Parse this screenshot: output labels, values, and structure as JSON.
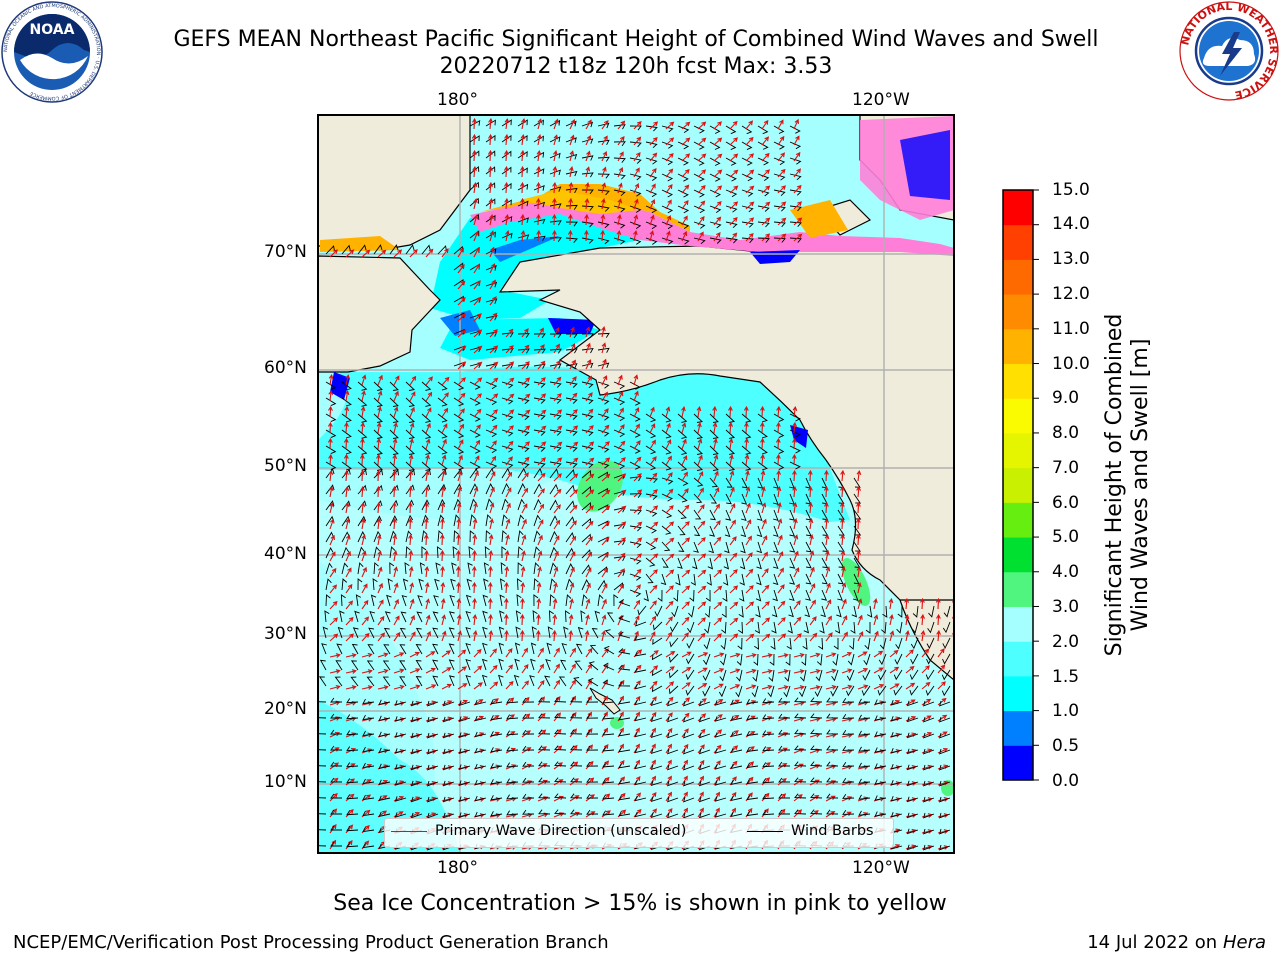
{
  "title": {
    "line1": "GEFS MEAN Northeast Pacific Significant Height of Combined Wind Waves and Swell",
    "line2": "20220712 t18z 120h fcst   Max: 3.53"
  },
  "logos": {
    "noaa": {
      "icon": "noaa-logo",
      "text": "NOAA",
      "ring_text": "NATIONAL OCEANIC AND ATMOSPHERIC ADMINISTRATION · U.S. DEPARTMENT OF COMMERCE"
    },
    "nws": {
      "icon": "nws-logo",
      "ring_text": "NATIONAL WEATHER SERVICE"
    }
  },
  "map": {
    "top_lon_labels": [
      "180°",
      "120°W"
    ],
    "bottom_lon_labels": [
      "180°",
      "120°W"
    ],
    "lat_labels": [
      "70°N",
      "60°N",
      "50°N",
      "40°N",
      "30°N",
      "20°N",
      "10°N"
    ],
    "colors": {
      "land": "#efecdc",
      "gridline": "#b0b0b0",
      "wave_arrow": "#dd1111",
      "wind_barb": "#000000"
    },
    "high_wave_areas": [
      "Gulf of Alaska patch ~3.0-3.5 m",
      "California coast ~3.0-3.5 m",
      "near Hawaii ~3.0 m"
    ]
  },
  "legend": {
    "wave_direction": "Primary Wave Direction (unscaled)",
    "wind_barbs": "Wind Barbs"
  },
  "colorbar": {
    "label_line1": "Significant Height of Combined",
    "label_line2": "Wind Waves and Swell [m]",
    "ticks": [
      "15.0",
      "14.0",
      "13.0",
      "12.0",
      "11.0",
      "10.0",
      "9.0",
      "8.0",
      "7.0",
      "6.0",
      "5.0",
      "4.0",
      "3.0",
      "2.0",
      "1.5",
      "1.0",
      "0.5",
      "0.0"
    ],
    "colors": [
      "#0000ff",
      "#0080ff",
      "#00ffff",
      "#4dffff",
      "#a6ffff",
      "#50f57f",
      "#00e030",
      "#66ee11",
      "#c8f000",
      "#e5f500",
      "#fafa00",
      "#ffe000",
      "#ffb300",
      "#ff8c00",
      "#ff6a00",
      "#ff4000",
      "#ff0000"
    ]
  },
  "note": "Sea Ice Concentration > 15% is shown in pink to yellow",
  "footer": {
    "left": "NCEP/EMC/Verification Post Processing Product Generation Branch",
    "date": "14 Jul 2022 on",
    "host": "Hera"
  }
}
